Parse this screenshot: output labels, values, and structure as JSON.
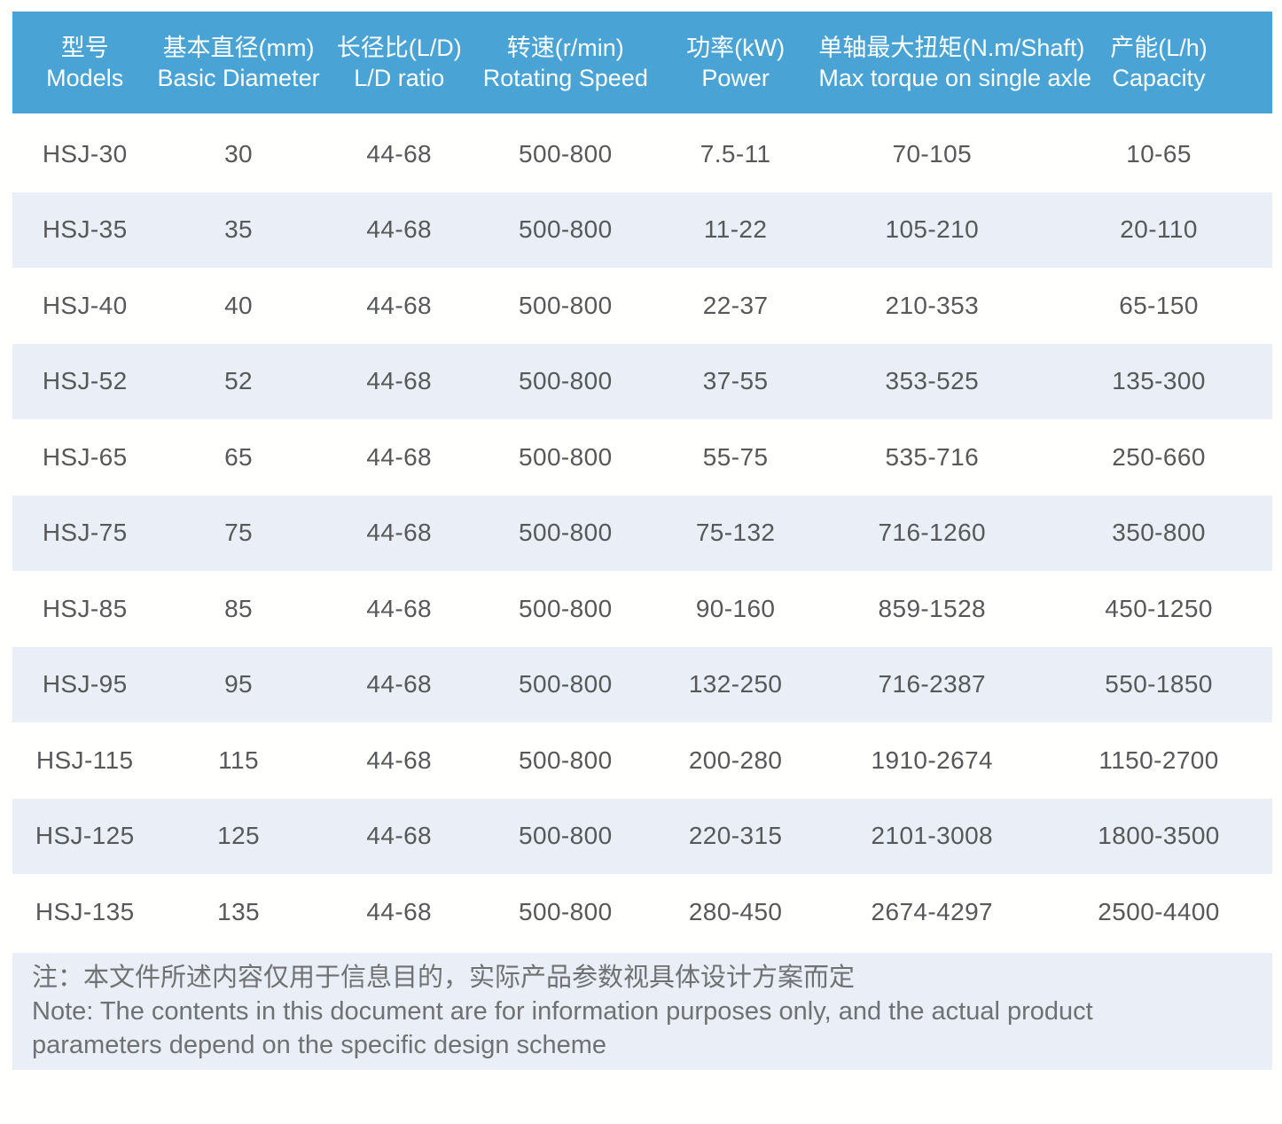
{
  "table": {
    "columns": [
      {
        "zh": "型号",
        "en": "Models"
      },
      {
        "zh": "基本直径(mm)",
        "en": "Basic Diameter"
      },
      {
        "zh": "长径比(L/D)",
        "en": "L/D ratio"
      },
      {
        "zh": "转速(r/min)",
        "en": "Rotating Speed"
      },
      {
        "zh": "功率(kW)",
        "en": "Power"
      },
      {
        "zh": "单轴最大扭矩(N.m/Shaft)",
        "en": "Max torque on single axle"
      },
      {
        "zh": "产能(L/h)",
        "en": "Capacity"
      }
    ],
    "rows": [
      [
        "HSJ-30",
        "30",
        "44-68",
        "500-800",
        "7.5-11",
        "70-105",
        "10-65"
      ],
      [
        "HSJ-35",
        "35",
        "44-68",
        "500-800",
        "11-22",
        "105-210",
        "20-110"
      ],
      [
        "HSJ-40",
        "40",
        "44-68",
        "500-800",
        "22-37",
        "210-353",
        "65-150"
      ],
      [
        "HSJ-52",
        "52",
        "44-68",
        "500-800",
        "37-55",
        "353-525",
        "135-300"
      ],
      [
        "HSJ-65",
        "65",
        "44-68",
        "500-800",
        "55-75",
        "535-716",
        "250-660"
      ],
      [
        "HSJ-75",
        "75",
        "44-68",
        "500-800",
        "75-132",
        "716-1260",
        "350-800"
      ],
      [
        "HSJ-85",
        "85",
        "44-68",
        "500-800",
        "90-160",
        "859-1528",
        "450-1250"
      ],
      [
        "HSJ-95",
        "95",
        "44-68",
        "500-800",
        "132-250",
        "716-2387",
        "550-1850"
      ],
      [
        "HSJ-115",
        "115",
        "44-68",
        "500-800",
        "200-280",
        "1910-2674",
        "1150-2700"
      ],
      [
        "HSJ-125",
        "125",
        "44-68",
        "500-800",
        "220-315",
        "2101-3008",
        "1800-3500"
      ],
      [
        "HSJ-135",
        "135",
        "44-68",
        "500-800",
        "280-450",
        "2674-4297",
        "2500-4400"
      ]
    ]
  },
  "note": {
    "zh": "注：本文件所述内容仅用于信息目的，实际产品参数视具体设计方案而定",
    "en": "Note: The contents in this document are for information purposes only, and the actual product parameters depend on the specific design scheme"
  },
  "colors": {
    "header_bg": "#49a4d5",
    "header_text": "#ffffff",
    "row_alt_bg": "#e9eef7",
    "body_text": "#57585a",
    "note_bg": "#e9eef7",
    "note_text": "#6f7173"
  }
}
